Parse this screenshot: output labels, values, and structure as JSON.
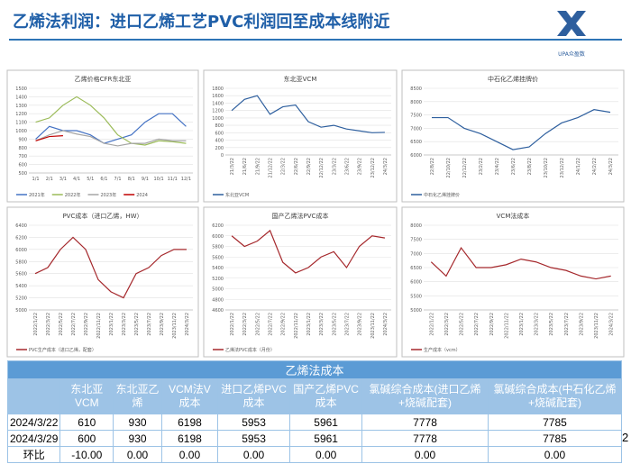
{
  "header": {
    "title": "乙烯法利润：进口乙烯工艺PVC利润回至成本线附近",
    "logo": "UPA众盈数"
  },
  "page_number": "2",
  "chart_data": [
    {
      "type": "line",
      "title": "乙烯价格CFR东北亚",
      "categories": [
        "1/1",
        "2/1",
        "3/1",
        "4/1",
        "5/1",
        "6/1",
        "7/1",
        "8/1",
        "9/1",
        "10/1",
        "11/1",
        "12/1"
      ],
      "ylim": [
        500,
        1500
      ],
      "yticks": [
        500,
        600,
        700,
        800,
        900,
        1000,
        1100,
        1200,
        1300,
        1400,
        1500
      ],
      "series": [
        {
          "name": "2021年",
          "color": "#4472c4",
          "values": [
            900,
            1050,
            1000,
            1000,
            950,
            850,
            900,
            950,
            1100,
            1200,
            1200,
            1050
          ]
        },
        {
          "name": "2022年",
          "color": "#9bbb59",
          "values": [
            1100,
            1150,
            1300,
            1400,
            1300,
            1150,
            950,
            850,
            830,
            880,
            870,
            850
          ]
        },
        {
          "name": "2023年",
          "color": "#a5a5a5",
          "values": [
            880,
            950,
            1000,
            960,
            930,
            850,
            820,
            850,
            850,
            900,
            880,
            880
          ]
        },
        {
          "name": "2024",
          "color": "#c00000",
          "values": [
            880,
            930,
            940,
            null,
            null,
            null,
            null,
            null,
            null,
            null,
            null,
            null
          ]
        }
      ]
    },
    {
      "type": "line",
      "title": "东北亚VCM",
      "categories": [
        "21/3/22",
        "21/6/22",
        "21/9/22",
        "21/12/22",
        "22/3/22",
        "22/6/22",
        "22/9/22",
        "22/12/22",
        "23/3/22",
        "23/6/22",
        "23/9/22",
        "23/12/22",
        "24/3/22"
      ],
      "ylim": [
        0,
        1800
      ],
      "yticks": [
        0,
        200,
        400,
        600,
        800,
        1000,
        1200,
        1400,
        1600,
        1800
      ],
      "series": [
        {
          "name": "东北亚VCM",
          "color": "#2e5f9e",
          "values": [
            1200,
            1500,
            1600,
            1100,
            1300,
            1350,
            900,
            750,
            800,
            700,
            650,
            600,
            610
          ]
        }
      ]
    },
    {
      "type": "line",
      "title": "中石化乙烯挂牌价",
      "categories": [
        "22/8/22",
        "22/10/22",
        "22/12/22",
        "23/2/22",
        "23/4/22",
        "23/6/22",
        "23/8/22",
        "23/10/22",
        "23/12/22",
        "24/1/22",
        "24/2/22",
        "24/3/22"
      ],
      "ylim": [
        6000,
        8500
      ],
      "yticks": [
        6000,
        6500,
        7000,
        7500,
        8000,
        8500
      ],
      "series": [
        {
          "name": "中石化乙烯挂牌价",
          "color": "#2e5f9e",
          "values": [
            7400,
            7400,
            7000,
            6800,
            6500,
            6200,
            6300,
            6800,
            7200,
            7400,
            7700,
            7600
          ]
        }
      ]
    },
    {
      "type": "line",
      "title": "PVC成本（进口乙烯，HW）",
      "categories": [
        "2022/1/22",
        "2022/3/22",
        "2022/5/22",
        "2022/7/22",
        "2022/9/22",
        "2022/11/22",
        "2023/1/22",
        "2023/3/22",
        "2023/5/22",
        "2023/7/22",
        "2023/9/22",
        "2023/11/22",
        "2024/3/22"
      ],
      "ylim": [
        5000,
        6400
      ],
      "yticks": [
        5000,
        5200,
        5400,
        5600,
        5800,
        6000,
        6200,
        6400
      ],
      "series": [
        {
          "name": "PVC生产成本（进口乙烯，配套）",
          "color": "#a5282c",
          "values": [
            5600,
            5700,
            6000,
            6200,
            6000,
            5500,
            5300,
            5200,
            5600,
            5700,
            5900,
            6000,
            6000
          ]
        }
      ]
    },
    {
      "type": "line",
      "title": "国产乙烯法PVC成本",
      "categories": [
        "2022/1/22",
        "2022/3/22",
        "2022/5/22",
        "2022/7/22",
        "2022/9/22",
        "2022/11/22",
        "2023/1/22",
        "2023/3/22",
        "2023/5/22",
        "2023/7/22",
        "2023/9/22",
        "2023/11/22",
        "2024/3/22"
      ],
      "ylim": [
        4600,
        6200
      ],
      "yticks": [
        4600,
        4800,
        5000,
        5200,
        5400,
        5600,
        5800,
        6000,
        6200
      ],
      "series": [
        {
          "name": "乙烯法PVC成本（月份）",
          "color": "#a5282c",
          "values": [
            6000,
            5800,
            5900,
            6100,
            5500,
            5300,
            5400,
            5600,
            5700,
            5400,
            5800,
            6000,
            5960
          ]
        }
      ]
    },
    {
      "type": "line",
      "title": "VCM法成本",
      "categories": [
        "2022/1/22",
        "2022/3/22",
        "2022/5/22",
        "2022/7/22",
        "2022/9/22",
        "2022/11/22",
        "2023/1/22",
        "2023/3/22",
        "2023/5/22",
        "2023/7/22",
        "2023/9/22",
        "2023/11/22",
        "2024/3/22"
      ],
      "ylim": [
        5000,
        8000
      ],
      "yticks": [
        5000,
        5500,
        6000,
        6500,
        7000,
        7500,
        8000
      ],
      "series": [
        {
          "name": "生产成本（vcm）",
          "color": "#a5282c",
          "values": [
            6700,
            6200,
            7200,
            6500,
            6500,
            6600,
            6800,
            6700,
            6500,
            6400,
            6200,
            6100,
            6200
          ]
        }
      ]
    }
  ],
  "table": {
    "title": "乙烯法成本",
    "headers": [
      "东北亚VCM",
      "东北亚乙烯",
      "VCM法V成本",
      "进口乙烯PVC成本",
      "国产乙烯PVC成本",
      "氯碱综合成本(进口乙烯+烧碱配套)",
      "氯碱综合成本(中石化乙烯+烧碱配套)"
    ],
    "rows": [
      [
        "2024/3/22",
        "610",
        "930",
        "6198",
        "5953",
        "5961",
        "7778",
        "7785"
      ],
      [
        "2024/3/29",
        "600",
        "930",
        "6198",
        "5953",
        "5961",
        "7778",
        "7785"
      ],
      [
        "环比",
        "-10.00",
        "0.00",
        "0.00",
        "0.00",
        "0.00",
        "0.00",
        "0.00"
      ]
    ]
  }
}
